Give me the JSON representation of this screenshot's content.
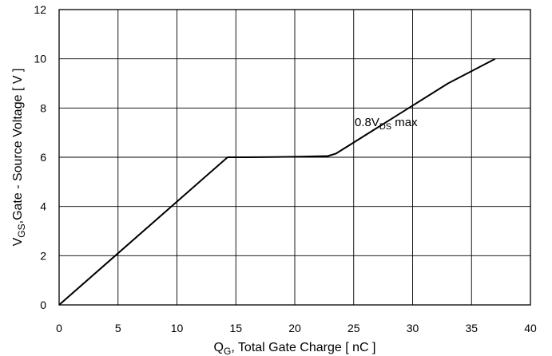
{
  "chart_data": {
    "type": "line",
    "xlabel": {
      "main": "Q",
      "sub": "G",
      "rest": ", Total Gate Charge [ nC ]"
    },
    "ylabel": {
      "main": "V",
      "sub": "GS",
      "rest": ",Gate - Source Voltage [ V ]"
    },
    "xlim": [
      0,
      40
    ],
    "ylim": [
      0,
      12
    ],
    "xticks": [
      0,
      5,
      10,
      15,
      20,
      25,
      30,
      35,
      40
    ],
    "yticks": [
      0,
      2,
      4,
      6,
      8,
      10,
      12
    ],
    "grid": true,
    "series": [
      {
        "x": [
          0,
          14.3,
          16,
          18,
          20,
          22.8,
          23.5,
          25,
          26.5,
          28,
          30,
          33,
          37
        ],
        "y": [
          0,
          6.0,
          6.0,
          6.01,
          6.02,
          6.05,
          6.15,
          6.6,
          7.05,
          7.5,
          8.1,
          9.0,
          10.0
        ]
      }
    ],
    "annotation": {
      "main": "0.8V",
      "sub": "DS",
      "rest": " max",
      "x": 27.0,
      "y": 7.5
    }
  }
}
